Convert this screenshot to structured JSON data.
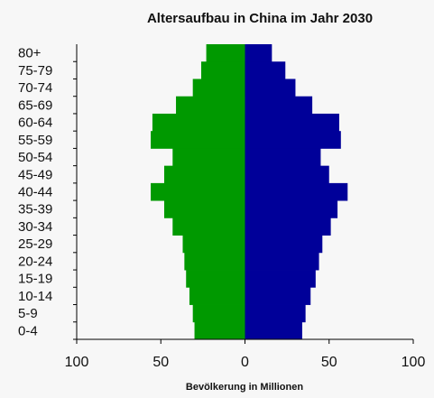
{
  "chart_data": {
    "type": "bar",
    "title": "Altersaufbau in China im Jahr 2030",
    "xlabel": "Bevölkerung in Millionen",
    "ylabel": "",
    "categories": [
      "0-4",
      "5-9",
      "10-14",
      "15-19",
      "20-24",
      "25-29",
      "30-34",
      "35-39",
      "40-44",
      "45-49",
      "50-54",
      "55-59",
      "60-64",
      "65-69",
      "70-74",
      "75-79",
      "80+"
    ],
    "series": [
      {
        "color": "#009900",
        "side": "left",
        "values": [
          30,
          31,
          33,
          35,
          36,
          37,
          43,
          48,
          56,
          48,
          43,
          56,
          55,
          41,
          31,
          26,
          23
        ]
      },
      {
        "color": "#000099",
        "side": "right",
        "values": [
          34,
          36,
          39,
          42,
          44,
          46,
          51,
          55,
          61,
          50,
          45,
          57,
          56,
          40,
          30,
          24,
          16
        ]
      }
    ],
    "xlim": [
      -100,
      100
    ],
    "xticks": [
      -100,
      -50,
      0,
      50,
      100
    ],
    "xtick_labels": [
      "100",
      "50",
      "0",
      "50",
      "100"
    ],
    "grid": false
  }
}
